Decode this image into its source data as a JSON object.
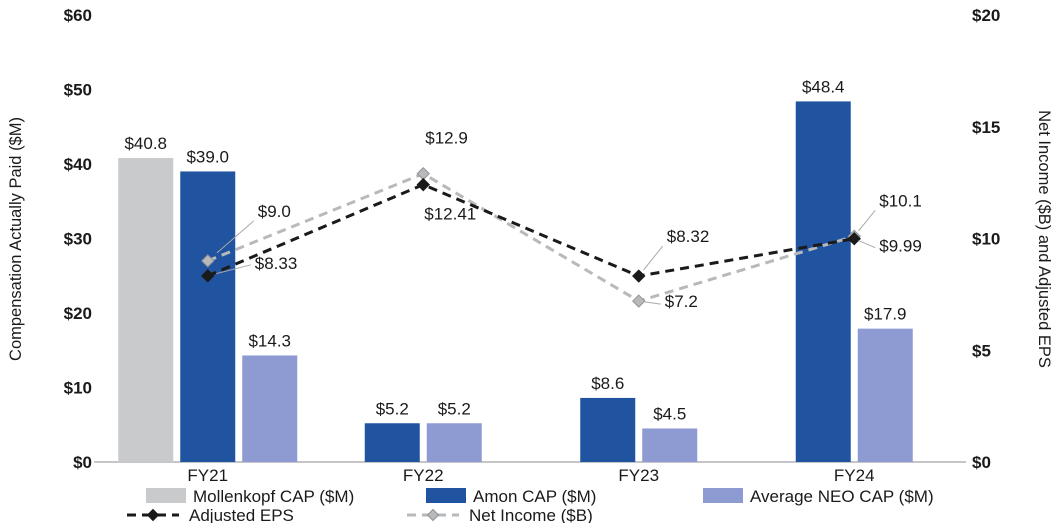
{
  "chart_data": {
    "type": "bar",
    "subtype": "grouped-bars-with-overlaid-dashed-lines",
    "categories": [
      "FY21",
      "FY22",
      "FY23",
      "FY24"
    ],
    "left_axis": {
      "title": "Compensation Actually Paid ($M)",
      "min": 0,
      "max": 60,
      "ticks": [
        "$0",
        "$10",
        "$20",
        "$30",
        "$40",
        "$50",
        "$60"
      ]
    },
    "right_axis": {
      "title": "Net Income ($B) and Adjusted EPS",
      "min": 0,
      "max": 20,
      "ticks": [
        "$0",
        "$5",
        "$10",
        "$15",
        "$20"
      ]
    },
    "bar_series": [
      {
        "name": "Mollenkopf CAP ($M)",
        "color": "#c9cacb",
        "axis": "left",
        "values": [
          40.8,
          null,
          null,
          null
        ],
        "labels": [
          "$40.8",
          "",
          "",
          ""
        ]
      },
      {
        "name": "Amon CAP ($M)",
        "color": "#2053a0",
        "axis": "left",
        "values": [
          39.0,
          5.2,
          8.6,
          48.4
        ],
        "labels": [
          "$39.0",
          "$5.2",
          "$8.6",
          "$48.4"
        ]
      },
      {
        "name": "Average NEO CAP ($M)",
        "color": "#8e9ad2",
        "axis": "left",
        "values": [
          14.3,
          5.2,
          4.5,
          17.9
        ],
        "labels": [
          "$14.3",
          "$5.2",
          "$4.5",
          "$17.9"
        ]
      }
    ],
    "line_series": [
      {
        "name": "Adjusted EPS",
        "color": "#1a1a1a",
        "marker_stroke": "#1a1a1a",
        "axis": "right",
        "values": [
          8.33,
          12.41,
          8.32,
          9.99
        ],
        "labels": [
          "$8.33",
          "$12.41",
          "$8.32",
          "$9.99"
        ]
      },
      {
        "name": "Net Income ($B)",
        "color": "#b7b9bb",
        "marker_stroke": "#909194",
        "axis": "right",
        "values": [
          9.0,
          12.9,
          7.2,
          10.1
        ],
        "labels": [
          "$9.0",
          "$12.9",
          "$7.2",
          "$10.1"
        ]
      }
    ],
    "legend_position": "bottom",
    "grid": "off"
  }
}
